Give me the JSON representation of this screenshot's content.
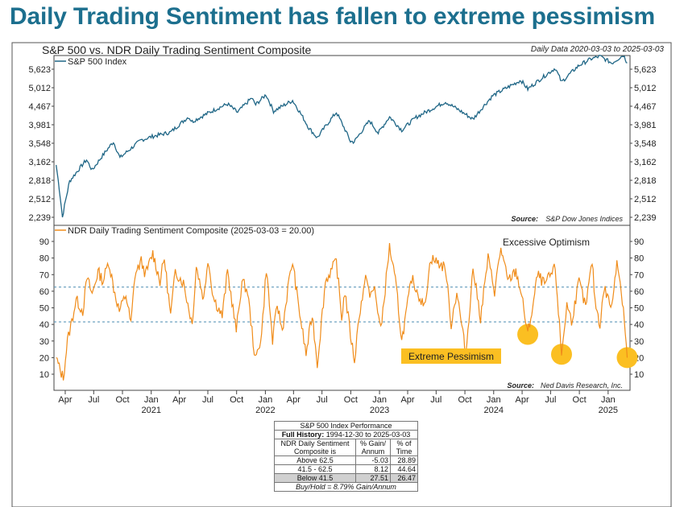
{
  "headline": "Daily Trading Sentiment has fallen to extreme pessimism",
  "chart_title": "S&P 500 vs. NDR Daily Trading Sentiment Composite",
  "date_range": "Daily Data 2020-03-03 to 2025-03-03",
  "colors": {
    "headline": "#1c6f8e",
    "spx_line": "#1f6686",
    "sentiment_line": "#f08c1a",
    "threshold_line": "#4a8bb0",
    "highlight": "#fbbf22"
  },
  "chart_data": [
    {
      "type": "line",
      "title": "S&P 500 Index",
      "source_label": "Source:",
      "source": "S&P Dow Jones Indices",
      "y_scale": "log",
      "ylim": [
        2130,
        6200
      ],
      "yticks": [
        2239,
        2512,
        2818,
        3162,
        3548,
        3981,
        4467,
        5012,
        5623
      ],
      "ytick_labels": [
        "2,239",
        "2,512",
        "2,818",
        "3,162",
        "3,548",
        "3,981",
        "4,467",
        "5,012",
        "5,623"
      ],
      "x": [
        "2020-03-03",
        "2020-03-23",
        "2020-04-15",
        "2020-06-08",
        "2020-06-26",
        "2020-09-02",
        "2020-09-23",
        "2020-11-30",
        "2021-01-04",
        "2021-03-04",
        "2021-04-30",
        "2021-05-12",
        "2021-07-30",
        "2021-09-02",
        "2021-10-04",
        "2021-11-18",
        "2021-12-01",
        "2022-01-03",
        "2022-01-27",
        "2022-03-29",
        "2022-05-20",
        "2022-06-16",
        "2022-08-16",
        "2022-09-30",
        "2022-10-12",
        "2022-11-30",
        "2022-12-28",
        "2023-02-02",
        "2023-03-13",
        "2023-04-28",
        "2023-07-31",
        "2023-10-27",
        "2023-12-29",
        "2024-03-28",
        "2024-04-19",
        "2024-07-16",
        "2024-08-05",
        "2024-09-30",
        "2024-11-08",
        "2024-12-06",
        "2025-01-13",
        "2025-02-19",
        "2025-03-03"
      ],
      "values": [
        3100,
        2240,
        2800,
        3200,
        3000,
        3580,
        3240,
        3620,
        3700,
        3800,
        4180,
        4060,
        4400,
        4530,
        4300,
        4700,
        4510,
        4800,
        4330,
        4630,
        3900,
        3670,
        4300,
        3590,
        3580,
        4080,
        3780,
        4180,
        3850,
        4170,
        4590,
        4120,
        4770,
        5250,
        4970,
        5660,
        5190,
        5760,
        6000,
        6090,
        5840,
        6140,
        5850
      ]
    },
    {
      "type": "line",
      "title": "NDR Daily Trading Sentiment Composite (2025-03-03 = 20.00)",
      "source_label": "Source:",
      "source": "Ned Davis Research, Inc.",
      "ylim": [
        5,
        95
      ],
      "yticks": [
        10,
        20,
        30,
        40,
        50,
        60,
        70,
        80,
        90
      ],
      "thresholds": [
        62.5,
        41.5
      ],
      "optimism_label": "Excessive Optimism",
      "pessimism_label": "Extreme Pessimism",
      "x": [
        "2020-03-03",
        "2020-03-16",
        "2020-03-26",
        "2020-04-08",
        "2020-04-22",
        "2020-05-06",
        "2020-05-27",
        "2020-06-10",
        "2020-06-26",
        "2020-07-15",
        "2020-07-31",
        "2020-08-18",
        "2020-09-03",
        "2020-09-21",
        "2020-10-12",
        "2020-10-28",
        "2020-11-10",
        "2020-11-30",
        "2020-12-14",
        "2021-01-06",
        "2021-01-29",
        "2021-02-12",
        "2021-03-04",
        "2021-03-19",
        "2021-04-14",
        "2021-05-12",
        "2021-05-25",
        "2021-06-18",
        "2021-07-01",
        "2021-07-19",
        "2021-08-16",
        "2021-09-02",
        "2021-09-30",
        "2021-10-18",
        "2021-11-05",
        "2021-11-30",
        "2021-12-20",
        "2022-01-04",
        "2022-01-24",
        "2022-02-08",
        "2022-02-24",
        "2022-03-14",
        "2022-03-29",
        "2022-04-14",
        "2022-05-11",
        "2022-05-31",
        "2022-06-16",
        "2022-07-12",
        "2022-08-16",
        "2022-09-02",
        "2022-09-12",
        "2022-09-30",
        "2022-10-13",
        "2022-10-28",
        "2022-11-21",
        "2022-12-01",
        "2022-12-16",
        "2023-01-05",
        "2023-02-02",
        "2023-02-24",
        "2023-03-13",
        "2023-04-14",
        "2023-05-24",
        "2023-06-14",
        "2023-07-31",
        "2023-08-18",
        "2023-09-05",
        "2023-10-04",
        "2023-10-27",
        "2023-11-20",
        "2023-12-14",
        "2024-01-04",
        "2024-01-24",
        "2024-02-15",
        "2024-03-12",
        "2024-03-28",
        "2024-04-19",
        "2024-05-08",
        "2024-05-20",
        "2024-06-12",
        "2024-07-16",
        "2024-08-05",
        "2024-08-22",
        "2024-09-06",
        "2024-09-30",
        "2024-10-21",
        "2024-11-11",
        "2024-11-20",
        "2024-12-06",
        "2024-12-19",
        "2025-01-13",
        "2025-01-29",
        "2025-02-19",
        "2025-03-03"
      ],
      "values": [
        20,
        12,
        8,
        30,
        42,
        55,
        48,
        68,
        58,
        72,
        66,
        78,
        62,
        48,
        58,
        40,
        70,
        78,
        70,
        83,
        66,
        80,
        45,
        72,
        65,
        40,
        75,
        55,
        80,
        56,
        45,
        72,
        36,
        66,
        60,
        18,
        34,
        74,
        30,
        52,
        36,
        62,
        78,
        55,
        22,
        46,
        16,
        66,
        78,
        44,
        60,
        34,
        18,
        46,
        70,
        56,
        62,
        36,
        87,
        62,
        30,
        68,
        50,
        80,
        74,
        40,
        60,
        22,
        74,
        44,
        80,
        60,
        86,
        66,
        72,
        60,
        34,
        54,
        70,
        64,
        74,
        22,
        52,
        42,
        66,
        50,
        78,
        54,
        40,
        62,
        50,
        80,
        50,
        20
      ],
      "highlighted_points": [
        {
          "date": "2024-04-19",
          "value": 34
        },
        {
          "date": "2024-08-05",
          "value": 22
        },
        {
          "date": "2025-03-03",
          "value": 20
        }
      ]
    }
  ],
  "x_axis": {
    "month_labels": [
      "Apr",
      "Jul",
      "Oct",
      "Jan",
      "Apr",
      "Jul",
      "Oct",
      "Jan",
      "Apr",
      "Jul",
      "Oct",
      "Jan",
      "Apr",
      "Jul",
      "Oct",
      "Jan",
      "Apr",
      "Jul",
      "Oct",
      "Jan"
    ],
    "month_dates": [
      "2020-04-01",
      "2020-07-01",
      "2020-10-01",
      "2021-01-01",
      "2021-04-01",
      "2021-07-01",
      "2021-10-01",
      "2022-01-01",
      "2022-04-01",
      "2022-07-01",
      "2022-10-01",
      "2023-01-01",
      "2023-04-01",
      "2023-07-01",
      "2023-10-01",
      "2024-01-01",
      "2024-04-01",
      "2024-07-01",
      "2024-10-01",
      "2025-01-01"
    ],
    "year_labels": [
      "2021",
      "2022",
      "2023",
      "2024",
      "2025"
    ],
    "year_dates": [
      "2021-01-01",
      "2022-01-01",
      "2023-01-01",
      "2024-01-01",
      "2025-01-01"
    ],
    "start": "2020-02-25",
    "end": "2025-03-12"
  },
  "performance_table": {
    "title": "S&P 500 Index Performance",
    "full_history_label": "Full History:",
    "full_history_range": "1994-12-30 to 2025-03-03",
    "col1_header": "NDR Daily Sentiment Composite is",
    "col2_header": "% Gain/ Annum",
    "col3_header": "% of Time",
    "rows": [
      {
        "label": "Above 62.5",
        "gain": "-5.03",
        "time": "28.89"
      },
      {
        "label": "41.5 - 62.5",
        "gain": "8.12",
        "time": "44.64"
      },
      {
        "label": "Below 41.5",
        "gain": "27.51",
        "time": "26.47"
      }
    ],
    "footer": "Buy/Hold = 8.79% Gain/Annum"
  }
}
